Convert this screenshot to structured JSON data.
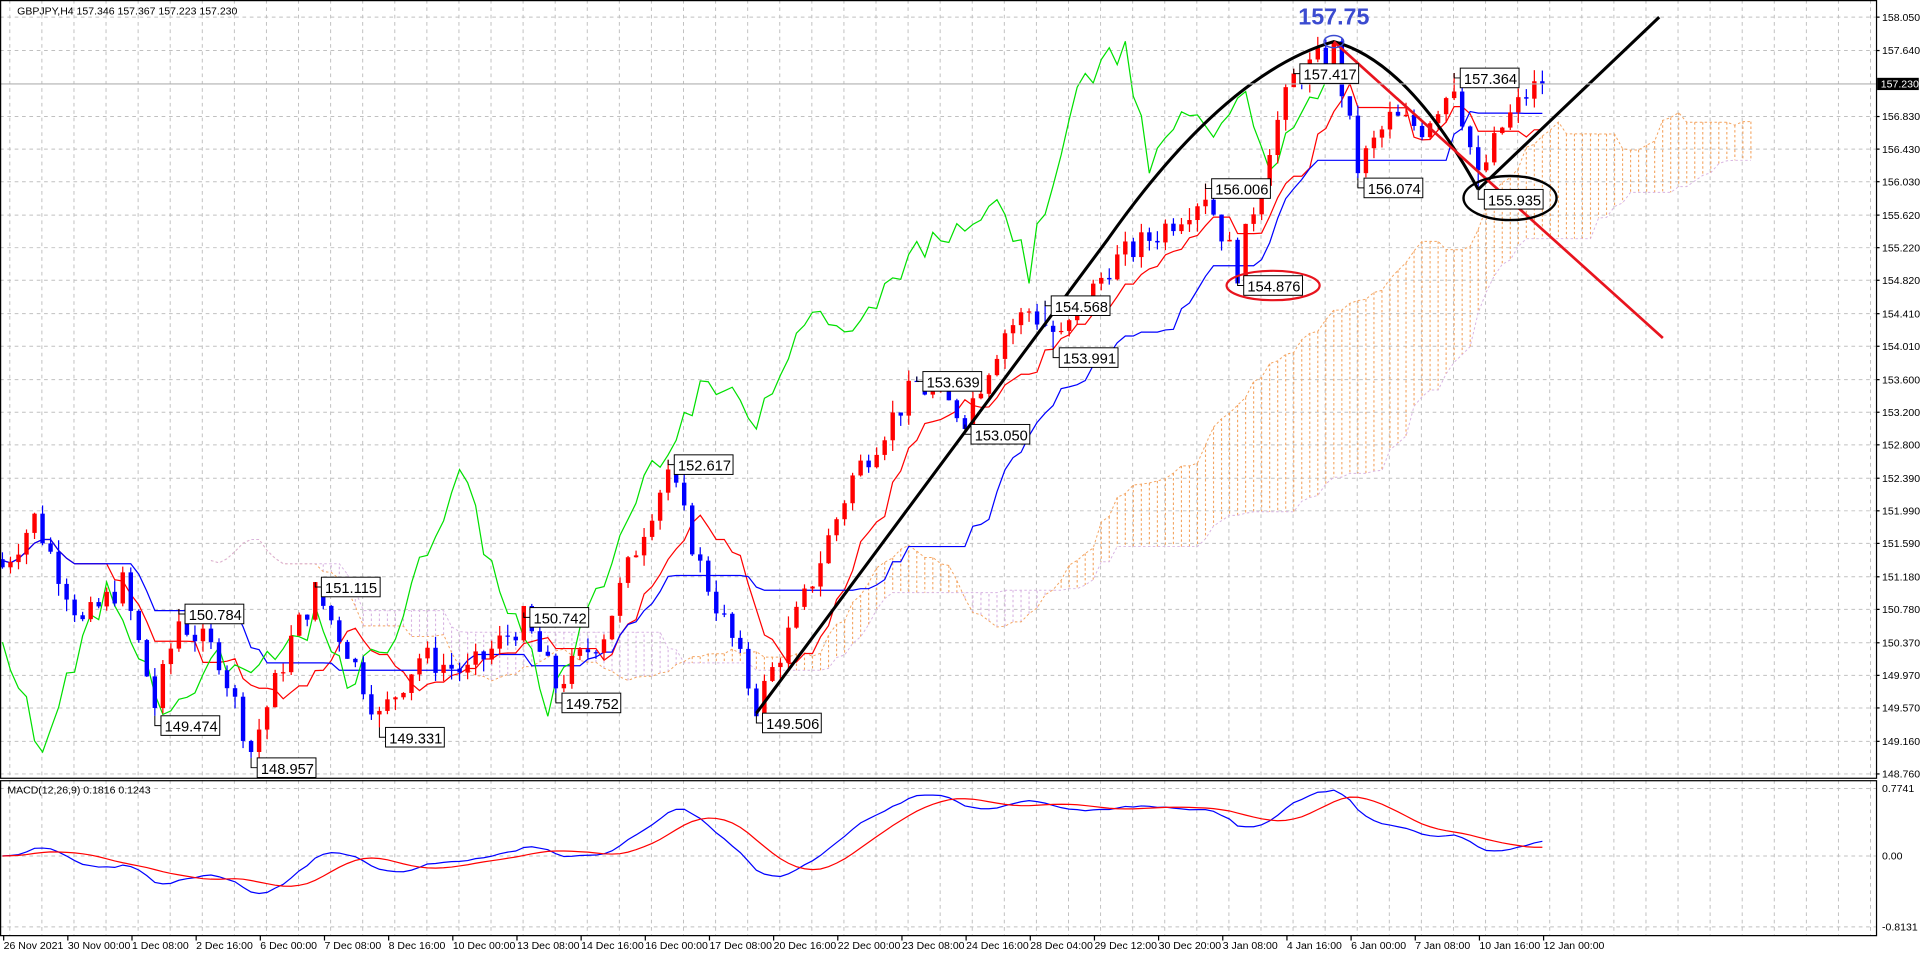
{
  "header": {
    "title": "GBPJPY,H4  157.346 157.367 157.223 157.230"
  },
  "macd_label": "MACD(12,26,9) 0.1816 0.1243",
  "current_price": "157.230",
  "colors": {
    "bull": "#ff0000",
    "bear": "#0000ff",
    "tenkan": "#ff0000",
    "kijun": "#0000ff",
    "chikou": "#00e000",
    "cloud_up": "#f4a460",
    "cloud_down": "#d8b4e2",
    "macd": "#0000ff",
    "signal": "#ff0000",
    "peak_label": "#3b4bd0"
  },
  "chart_data": {
    "type": "candlestick",
    "symbol": "GBPJPY",
    "timeframe": "H4",
    "ylim": [
      148.76,
      158.05
    ],
    "price_ticks": [
      "158.050",
      "157.640",
      "156.830",
      "156.430",
      "156.030",
      "155.620",
      "155.220",
      "154.820",
      "154.410",
      "154.010",
      "153.600",
      "153.200",
      "152.800",
      "152.390",
      "151.990",
      "151.590",
      "151.180",
      "150.780",
      "150.370",
      "149.970",
      "149.570",
      "149.160",
      "148.760"
    ],
    "time_labels": [
      "26 Nov 2021",
      "30 Nov 00:00",
      "1 Dec 08:00",
      "2 Dec 16:00",
      "6 Dec 00:00",
      "7 Dec 08:00",
      "8 Dec 16:00",
      "10 Dec 00:00",
      "13 Dec 08:00",
      "14 Dec 16:00",
      "16 Dec 00:00",
      "17 Dec 08:00",
      "20 Dec 16:00",
      "22 Dec 00:00",
      "23 Dec 08:00",
      "24 Dec 16:00",
      "28 Dec 04:00",
      "29 Dec 12:00",
      "30 Dec 20:00",
      "3 Jan 08:00",
      "4 Jan 16:00",
      "6 Jan 00:00",
      "7 Jan 08:00",
      "10 Jan 16:00",
      "12 Jan 00:00"
    ],
    "bars_total": 193,
    "price_path": [
      [
        0,
        151.3
      ],
      [
        4,
        151.9
      ],
      [
        10,
        150.6
      ],
      [
        15,
        151.1
      ],
      [
        19,
        149.6
      ],
      [
        22,
        150.65
      ],
      [
        27,
        150.2
      ],
      [
        31,
        149.05
      ],
      [
        36,
        150.4
      ],
      [
        39,
        151.0
      ],
      [
        43,
        150.3
      ],
      [
        47,
        149.45
      ],
      [
        52,
        150.2
      ],
      [
        58,
        150.0
      ],
      [
        65,
        150.65
      ],
      [
        69,
        149.85
      ],
      [
        75,
        150.5
      ],
      [
        80,
        151.8
      ],
      [
        83,
        152.5
      ],
      [
        87,
        151.3
      ],
      [
        91,
        150.4
      ],
      [
        94,
        149.6
      ],
      [
        100,
        150.9
      ],
      [
        106,
        152.4
      ],
      [
        110,
        153.0
      ],
      [
        114,
        153.55
      ],
      [
        120,
        153.15
      ],
      [
        125,
        154.2
      ],
      [
        128,
        154.45
      ],
      [
        132,
        154.1
      ],
      [
        138,
        155.0
      ],
      [
        144,
        155.4
      ],
      [
        150,
        155.9
      ],
      [
        154,
        154.95
      ],
      [
        158,
        156.5
      ],
      [
        161,
        157.3
      ],
      [
        166,
        157.65
      ],
      [
        169,
        156.2
      ],
      [
        173,
        156.8
      ],
      [
        177,
        156.7
      ],
      [
        181,
        157.25
      ],
      [
        184,
        156.05
      ],
      [
        187,
        156.7
      ],
      [
        190,
        157.1
      ],
      [
        192,
        157.25
      ]
    ],
    "annotations": [
      {
        "bar": 22,
        "price": 150.784,
        "text": "150.784",
        "kind": "high"
      },
      {
        "bar": 19,
        "price": 149.474,
        "text": "149.474",
        "kind": "low"
      },
      {
        "bar": 31,
        "price": 148.957,
        "text": "148.957",
        "kind": "low"
      },
      {
        "bar": 39,
        "price": 151.115,
        "text": "151.115",
        "kind": "high"
      },
      {
        "bar": 47,
        "price": 149.331,
        "text": "149.331",
        "kind": "low"
      },
      {
        "bar": 65,
        "price": 150.742,
        "text": "150.742",
        "kind": "high"
      },
      {
        "bar": 69,
        "price": 149.752,
        "text": "149.752",
        "kind": "low"
      },
      {
        "bar": 83,
        "price": 152.617,
        "text": "152.617",
        "kind": "high"
      },
      {
        "bar": 94,
        "price": 149.506,
        "text": "149.506",
        "kind": "low"
      },
      {
        "bar": 114,
        "price": 153.639,
        "text": "153.639",
        "kind": "high"
      },
      {
        "bar": 120,
        "price": 153.05,
        "text": "153.050",
        "kind": "low"
      },
      {
        "bar": 130,
        "price": 154.568,
        "text": "154.568",
        "kind": "high"
      },
      {
        "bar": 131,
        "price": 153.991,
        "text": "153.991",
        "kind": "low"
      },
      {
        "bar": 150,
        "price": 156.006,
        "text": "156.006",
        "kind": "high"
      },
      {
        "bar": 154,
        "price": 154.876,
        "text": "154.876",
        "kind": "low"
      },
      {
        "bar": 161,
        "price": 157.417,
        "text": "157.417",
        "kind": "high"
      },
      {
        "bar": 169,
        "price": 156.074,
        "text": "156.074",
        "kind": "low"
      },
      {
        "bar": 181,
        "price": 157.364,
        "text": "157.364",
        "kind": "high"
      },
      {
        "bar": 184,
        "price": 155.935,
        "text": "155.935",
        "kind": "low"
      }
    ],
    "peak": {
      "bar": 166,
      "price": 157.75,
      "text": "157.75"
    },
    "macd": {
      "params": "12,26,9",
      "value": 0.1816,
      "signal": 0.1243,
      "ylim": [
        -0.8131,
        0.7741
      ],
      "ticks": [
        "0.7741",
        "0.00",
        "-0.8131"
      ]
    }
  }
}
